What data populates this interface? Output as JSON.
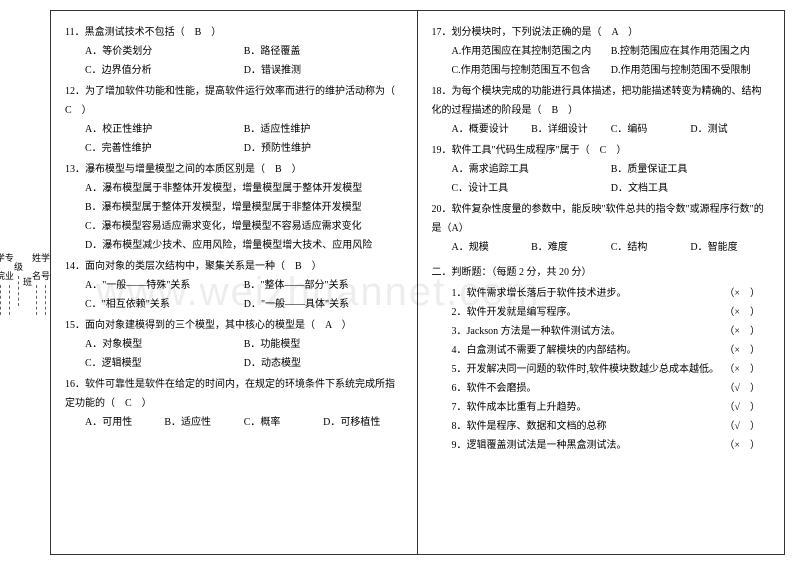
{
  "binding": [
    "学号",
    "姓名",
    "班",
    "级",
    "专业",
    "学院"
  ],
  "watermark": "www.weizhuannet.com",
  "left": {
    "q11": {
      "text": "11．黑盒测试技术不包括（　B　）",
      "opts": [
        "A．等价类划分",
        "B．路径覆盖",
        "C．边界值分析",
        "D．错误推测"
      ]
    },
    "q12": {
      "text": "12．为了增加软件功能和性能，提高软件运行效率而进行的维护活动称为（　C　）",
      "opts": [
        "A．校正性维护",
        "B．适应性维护",
        "C．完善性维护",
        "D．预防性维护"
      ]
    },
    "q13": {
      "text": "13．瀑布模型与增量模型之间的本质区别是（　B　）",
      "opts": [
        "A．瀑布模型属于非整体开发模型，增量模型属于整体开发模型",
        "B．瀑布模型属于整体开发模型，增量模型属于非整体开发模型",
        "C．瀑布模型容易适应需求变化，增量模型不容易适应需求变化",
        "D．瀑布模型减少技术、应用风险，增量模型增大技术、应用风险"
      ]
    },
    "q14": {
      "text": "14．面向对象的类层次结构中，聚集关系是一种（　B　）",
      "opts": [
        "A．\"一般——特殊\"关系",
        "B．\"整体——部分\"关系",
        "C．\"相互依赖\"关系",
        "D．\"一般——具体\"关系"
      ]
    },
    "q15": {
      "text": "15．面向对象建模得到的三个模型，其中核心的模型是（　A　）",
      "opts": [
        "A．对象模型",
        "B．功能模型",
        "C．逻辑模型",
        "D．动态模型"
      ]
    },
    "q16": {
      "text": "16．软件可靠性是软件在给定的时间内，在规定的环境条件下系统完成所指定功能的（　C　）",
      "opts": [
        "A．可用性",
        "B．适应性",
        "C．概率",
        "D．可移植性"
      ]
    }
  },
  "right": {
    "q17": {
      "text": "17．划分模块时，下列说法正确的是（　A　）",
      "opts": [
        "A.作用范围应在其控制范围之内",
        "B.控制范围应在其作用范围之内",
        "C.作用范围与控制范围互不包含",
        "D.作用范围与控制范围不受限制"
      ]
    },
    "q18": {
      "text": "18．为每个模块完成的功能进行具体描述，把功能描述转变为精确的、结构化的过程描述的阶段是（　B　）",
      "opts": [
        "A．概要设计",
        "B．详细设计",
        "C．编码",
        "D．测试"
      ]
    },
    "q19": {
      "text": "19．软件工具\"代码生成程序\"属于（　C　）",
      "opts": [
        "A．需求追踪工具",
        "B．质量保证工具",
        "C．设计工具",
        "D．文档工具"
      ]
    },
    "q20": {
      "text": "20．软件复杂性度量的参数中，能反映\"软件总共的指令数\"或源程序行数\"的是（A）",
      "opts": [
        "A．规模",
        "B．难度",
        "C．结构",
        "D．智能度"
      ]
    },
    "tfTitle": "二．判断题：（每题 2 分，共 20 分）",
    "tf": [
      {
        "t": "1．软件需求增长落后于软件技术进步。",
        "m": "（×　）"
      },
      {
        "t": "2．软件开发就是编写程序。",
        "m": "（×　）"
      },
      {
        "t": "3．Jackson 方法是一种软件测试方法。",
        "m": "（×　）"
      },
      {
        "t": "4．白盒测试不需要了解模块的内部结构。",
        "m": "（×　）"
      },
      {
        "t": "5．开发解决同一问题的软件时,软件模块数越少总成本越低。",
        "m": "（×　）"
      },
      {
        "t": "6．软件不会磨损。",
        "m": "（√　）"
      },
      {
        "t": "7．软件成本比重有上升趋势。",
        "m": "（√　）"
      },
      {
        "t": "8．软件是程序、数据和文档的总称",
        "m": "（√　）"
      },
      {
        "t": "9．逻辑覆盖测试法是一种黑盒测试法。",
        "m": "（×　）"
      }
    ]
  }
}
